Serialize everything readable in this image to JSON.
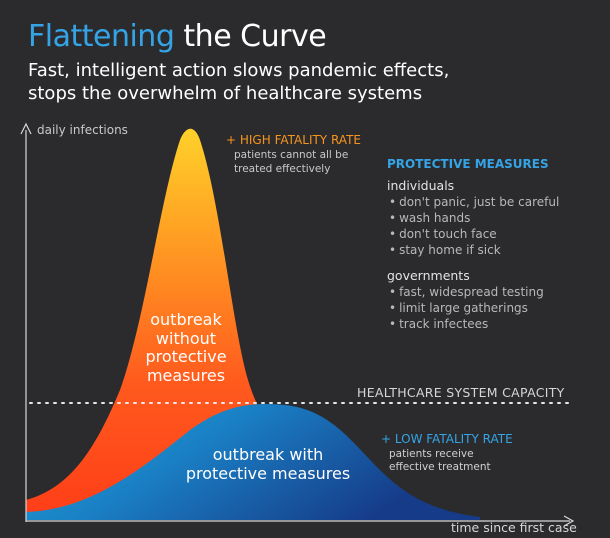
{
  "title": {
    "accent": "Flattening",
    "rest": " the Curve"
  },
  "subtitle": {
    "line1": "Fast, intelligent action slows pandemic effects,",
    "line2": "stops the overwhelm of healthcare systems"
  },
  "axes": {
    "y_label": "daily infections",
    "x_label": "time since first case"
  },
  "annotations": {
    "high_title": "+ HIGH FATALITY RATE",
    "high_desc": "patients cannot all be treated effectively",
    "low_title": "+ LOW FATALITY RATE",
    "low_desc": "patients receive effective treatment",
    "capacity": "HEALTHCARE SYSTEM CAPACITY"
  },
  "curves": {
    "without": "outbreak without protective measures",
    "with": "outbreak with protective measures"
  },
  "measures": {
    "heading": "PROTECTIVE MEASURES",
    "groups": [
      {
        "title": "individuals",
        "items": [
          "don't panic, just be careful",
          "wash hands",
          "don't touch face",
          "stay home if sick"
        ]
      },
      {
        "title": "governments",
        "items": [
          "fast, widespread testing",
          "limit large gatherings",
          "track infectees"
        ]
      }
    ]
  },
  "colors": {
    "background": "#2b2b2d",
    "accent_blue": "#35a4e6",
    "orange_top": "#ffb21c",
    "orange_bottom": "#ff4a1a",
    "blue_curve": "#1f8fc8",
    "blue_curve_dark": "#173e86"
  }
}
